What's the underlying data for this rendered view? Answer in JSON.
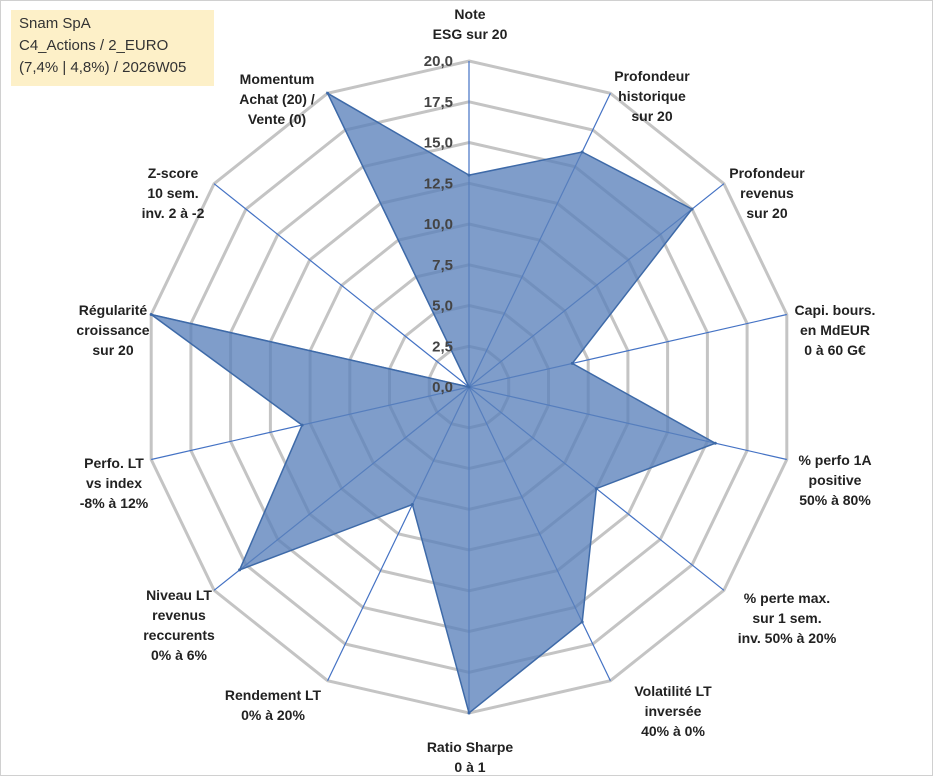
{
  "info": {
    "line1": "Snam SpA",
    "line2": "C4_Actions / 2_EURO",
    "line3": "(7,4% | 4,8%) / 2026W05"
  },
  "chart_data": {
    "type": "radar",
    "title": "",
    "range": [
      0,
      20
    ],
    "tick_values": [
      0,
      2.5,
      5,
      7.5,
      10,
      12.5,
      15,
      17.5,
      20
    ],
    "tick_labels": [
      "0,0",
      "2,5",
      "5,0",
      "7,5",
      "10,0",
      "12,5",
      "15,0",
      "17,5",
      "20,0"
    ],
    "axes": [
      {
        "label": [
          "Note",
          "ESG sur 20"
        ],
        "value": 13
      },
      {
        "label": [
          "Profondeur",
          "historique",
          "sur 20"
        ],
        "value": 16
      },
      {
        "label": [
          "Profondeur",
          "revenus",
          "sur 20"
        ],
        "value": 17.5
      },
      {
        "label": [
          "Capi. bours.",
          "en MdEUR",
          "0 à 60 G€"
        ],
        "value": 6.5
      },
      {
        "label": [
          "% perfo 1A",
          "positive",
          "50% à 80%"
        ],
        "value": 15.5
      },
      {
        "label": [
          "% perte max.",
          "sur 1 sem.",
          "inv. 50% à 20%"
        ],
        "value": 10
      },
      {
        "label": [
          "Volatilité LT",
          "inversée",
          "40% à 0%"
        ],
        "value": 16
      },
      {
        "label": [
          "Ratio Sharpe",
          "0 à 1"
        ],
        "value": 20
      },
      {
        "label": [
          "Rendement LT",
          "0% à 20%"
        ],
        "value": 8
      },
      {
        "label": [
          "Niveau LT",
          "revenus",
          "reccurents",
          "0% à 6%"
        ],
        "value": 18
      },
      {
        "label": [
          "Perfo. LT",
          "vs index",
          "-8% à 12%"
        ],
        "value": 10.5
      },
      {
        "label": [
          "Régularité",
          "croissance",
          "sur 20"
        ],
        "value": 20
      },
      {
        "label": [
          "Z-score",
          "10 sem.",
          "inv. 2 à -2"
        ],
        "value": 0
      },
      {
        "label": [
          "Momentum",
          "Achat (20) /",
          "Vente (0)"
        ],
        "value": 20
      }
    ],
    "colors": {
      "fill": "#5b82bb",
      "stroke": "#3e6aa8",
      "grid": "#c4c4c4",
      "spoke": "#4472c4"
    }
  }
}
